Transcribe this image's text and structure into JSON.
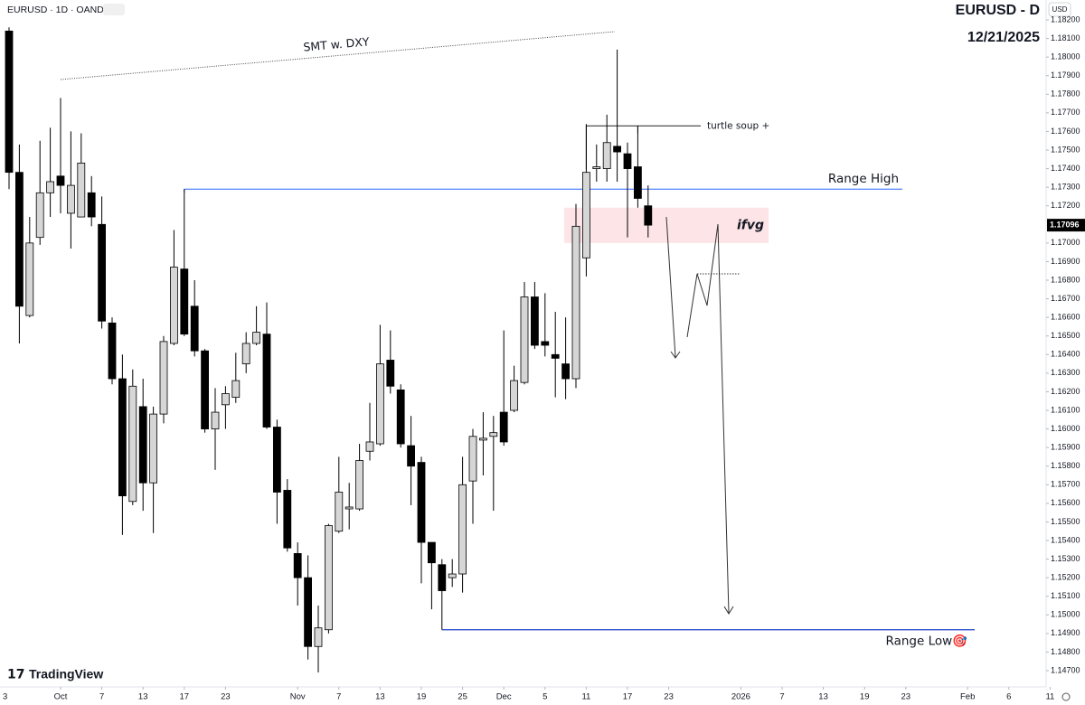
{
  "chart_data": {
    "type": "candlestick",
    "symbol_label": "EURUSD · 1D · OANDA",
    "title": "EURUSD - D",
    "subtitle": "12/21/2025",
    "currency_button": "USD",
    "brand": "TradingView",
    "up_color": "#d6d6d6",
    "down_color": "#000000",
    "ylim": [
      1.1466,
      1.1821
    ],
    "yticks": [
      {
        "value": 1.147,
        "label": "1.14700"
      },
      {
        "value": 1.148,
        "label": "1.14800"
      },
      {
        "value": 1.149,
        "label": "1.14900"
      },
      {
        "value": 1.15,
        "label": "1.15000"
      },
      {
        "value": 1.151,
        "label": "1.15100"
      },
      {
        "value": 1.152,
        "label": "1.15200"
      },
      {
        "value": 1.153,
        "label": "1.15300"
      },
      {
        "value": 1.154,
        "label": "1.15400"
      },
      {
        "value": 1.155,
        "label": "1.15500"
      },
      {
        "value": 1.156,
        "label": "1.15600"
      },
      {
        "value": 1.157,
        "label": "1.15700"
      },
      {
        "value": 1.158,
        "label": "1.15800"
      },
      {
        "value": 1.159,
        "label": "1.15900"
      },
      {
        "value": 1.16,
        "label": "1.16000"
      },
      {
        "value": 1.161,
        "label": "1.16100"
      },
      {
        "value": 1.162,
        "label": "1.16200"
      },
      {
        "value": 1.163,
        "label": "1.16300"
      },
      {
        "value": 1.164,
        "label": "1.16400"
      },
      {
        "value": 1.165,
        "label": "1.16500"
      },
      {
        "value": 1.166,
        "label": "1.16600"
      },
      {
        "value": 1.167,
        "label": "1.16700"
      },
      {
        "value": 1.168,
        "label": "1.16800"
      },
      {
        "value": 1.169,
        "label": "1.16900"
      },
      {
        "value": 1.17,
        "label": "1.17000"
      },
      {
        "value": 1.172,
        "label": "1.17200"
      },
      {
        "value": 1.173,
        "label": "1.17300"
      },
      {
        "value": 1.174,
        "label": "1.17400"
      },
      {
        "value": 1.175,
        "label": "1.17500"
      },
      {
        "value": 1.176,
        "label": "1.17600"
      },
      {
        "value": 1.177,
        "label": "1.17700"
      },
      {
        "value": 1.178,
        "label": "1.17800"
      },
      {
        "value": 1.179,
        "label": "1.17900"
      },
      {
        "value": 1.18,
        "label": "1.18000"
      },
      {
        "value": 1.181,
        "label": "1.18100"
      },
      {
        "value": 1.182,
        "label": "1.18200"
      }
    ],
    "xticks": [
      {
        "value": -1,
        "label": "3"
      },
      {
        "value": 5,
        "label": "Oct"
      },
      {
        "value": 9,
        "label": "7"
      },
      {
        "value": 13,
        "label": "13"
      },
      {
        "value": 17,
        "label": "17"
      },
      {
        "value": 21,
        "label": "23"
      },
      {
        "value": 28,
        "label": "Nov"
      },
      {
        "value": 32,
        "label": "7"
      },
      {
        "value": 36,
        "label": "13"
      },
      {
        "value": 40,
        "label": "19"
      },
      {
        "value": 44,
        "label": "25"
      },
      {
        "value": 48,
        "label": "Dec"
      },
      {
        "value": 52,
        "label": "5"
      },
      {
        "value": 56,
        "label": "11"
      },
      {
        "value": 60,
        "label": "17"
      },
      {
        "value": 64,
        "label": "23"
      },
      {
        "value": 71,
        "label": "2026"
      },
      {
        "value": 75,
        "label": "7"
      },
      {
        "value": 79,
        "label": "13"
      },
      {
        "value": 83,
        "label": "19"
      },
      {
        "value": 87,
        "label": "23"
      },
      {
        "value": 93,
        "label": "Feb"
      },
      {
        "value": 97,
        "label": "6"
      },
      {
        "value": 101,
        "label": "11"
      }
    ],
    "ohlc": [
      [
        1.1814,
        1.1816,
        1.1729,
        1.1738
      ],
      [
        1.1738,
        1.1753,
        1.1646,
        1.1666
      ],
      [
        1.1661,
        1.1714,
        1.166,
        1.17
      ],
      [
        1.1703,
        1.1755,
        1.1699,
        1.1727
      ],
      [
        1.1727,
        1.1762,
        1.1714,
        1.1733
      ],
      [
        1.1736,
        1.1778,
        1.1716,
        1.1731
      ],
      [
        1.1716,
        1.176,
        1.1697,
        1.1731
      ],
      [
        1.1714,
        1.1759,
        1.1714,
        1.1743
      ],
      [
        1.1727,
        1.1736,
        1.1709,
        1.1714
      ],
      [
        1.171,
        1.1725,
        1.1654,
        1.1658
      ],
      [
        1.1657,
        1.166,
        1.1624,
        1.1627
      ],
      [
        1.1627,
        1.164,
        1.1543,
        1.1564
      ],
      [
        1.1561,
        1.1632,
        1.1559,
        1.1623
      ],
      [
        1.1612,
        1.1627,
        1.1556,
        1.1571
      ],
      [
        1.1571,
        1.1612,
        1.1544,
        1.1608
      ],
      [
        1.1608,
        1.165,
        1.1603,
        1.1647
      ],
      [
        1.1646,
        1.1707,
        1.1645,
        1.1687
      ],
      [
        1.1686,
        1.1729,
        1.165,
        1.1651
      ],
      [
        1.1666,
        1.168,
        1.1639,
        1.1642
      ],
      [
        1.1642,
        1.1643,
        1.1598,
        1.16
      ],
      [
        1.16,
        1.1622,
        1.1578,
        1.1609
      ],
      [
        1.1613,
        1.1623,
        1.16,
        1.1619
      ],
      [
        1.1617,
        1.1641,
        1.1614,
        1.1626
      ],
      [
        1.1635,
        1.1652,
        1.163,
        1.1646
      ],
      [
        1.1646,
        1.1666,
        1.1645,
        1.1652
      ],
      [
        1.1651,
        1.1668,
        1.16,
        1.1601
      ],
      [
        1.1601,
        1.1605,
        1.1549,
        1.1566
      ],
      [
        1.1567,
        1.1573,
        1.1534,
        1.1536
      ],
      [
        1.1533,
        1.1539,
        1.1505,
        1.152
      ],
      [
        1.152,
        1.1532,
        1.1476,
        1.1483
      ],
      [
        1.1483,
        1.1505,
        1.1469,
        1.1493
      ],
      [
        1.1492,
        1.1549,
        1.149,
        1.1548
      ],
      [
        1.1545,
        1.1585,
        1.1544,
        1.1566
      ],
      [
        1.1557,
        1.1571,
        1.1546,
        1.1558
      ],
      [
        1.1557,
        1.1592,
        1.1556,
        1.1583
      ],
      [
        1.1588,
        1.1614,
        1.1583,
        1.1593
      ],
      [
        1.1592,
        1.1656,
        1.1591,
        1.1635
      ],
      [
        1.1637,
        1.1653,
        1.1619,
        1.1623
      ],
      [
        1.1621,
        1.1624,
        1.159,
        1.1592
      ],
      [
        1.1591,
        1.1607,
        1.1559,
        1.158
      ],
      [
        1.1582,
        1.1585,
        1.1517,
        1.1539
      ],
      [
        1.1539,
        1.1539,
        1.1503,
        1.1528
      ],
      [
        1.1527,
        1.153,
        1.1492,
        1.1513
      ],
      [
        1.152,
        1.153,
        1.1515,
        1.1522
      ],
      [
        1.1522,
        1.1585,
        1.1512,
        1.157
      ],
      [
        1.1572,
        1.16,
        1.1549,
        1.1596
      ],
      [
        1.1594,
        1.1609,
        1.1575,
        1.1595
      ],
      [
        1.1596,
        1.1607,
        1.1556,
        1.1598
      ],
      [
        1.1609,
        1.1653,
        1.1591,
        1.1593
      ],
      [
        1.161,
        1.1634,
        1.1609,
        1.1626
      ],
      [
        1.1625,
        1.1679,
        1.1624,
        1.1671
      ],
      [
        1.1671,
        1.1679,
        1.1643,
        1.1645
      ],
      [
        1.1647,
        1.1673,
        1.1639,
        1.1645
      ],
      [
        1.164,
        1.1663,
        1.1617,
        1.1638
      ],
      [
        1.1635,
        1.166,
        1.1616,
        1.1627
      ],
      [
        1.1627,
        1.1721,
        1.1622,
        1.1709
      ],
      [
        1.1692,
        1.1764,
        1.1682,
        1.1738
      ],
      [
        1.174,
        1.1753,
        1.1733,
        1.1741
      ],
      [
        1.174,
        1.1769,
        1.1733,
        1.1754
      ],
      [
        1.1752,
        1.1804,
        1.1733,
        1.1749
      ],
      [
        1.1748,
        1.1754,
        1.1703,
        1.174
      ],
      [
        1.1741,
        1.1763,
        1.1719,
        1.1724
      ],
      [
        1.172,
        1.1731,
        1.1703,
        1.17096
      ]
    ],
    "annotations": {
      "smt": {
        "text": "SMT w. DXY"
      },
      "turtle_soup": {
        "text": "turtle soup +",
        "price": 1.1763
      },
      "range_high": {
        "text": "Range High",
        "price": 1.1729,
        "color": "#2962ff"
      },
      "range_low": {
        "text": "Range Low🎯",
        "price": 1.1492,
        "color": "#1a3fc9"
      },
      "ifvg": {
        "text": "ifvg",
        "prices": [
          1.17,
          1.1719
        ],
        "color": "#fde4e6"
      }
    }
  }
}
